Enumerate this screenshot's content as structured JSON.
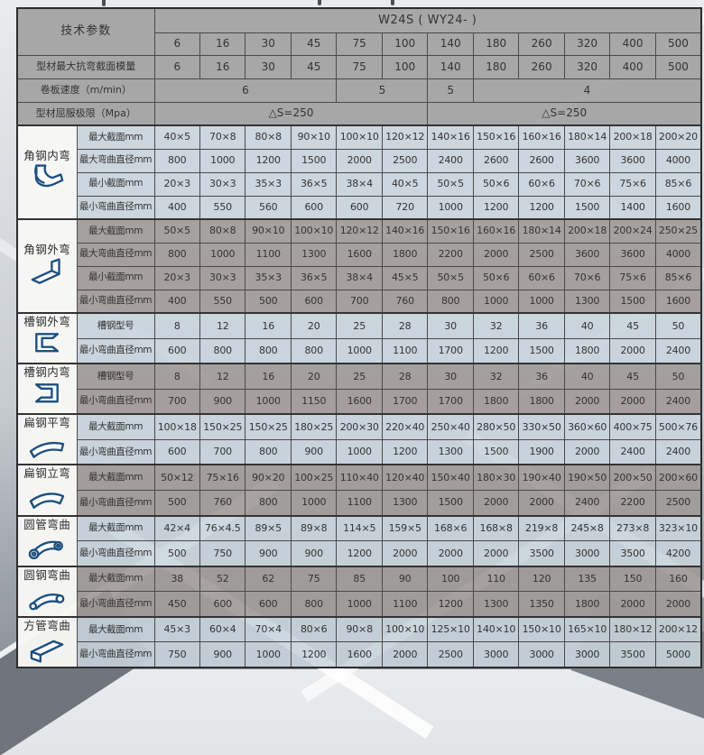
{
  "header": {
    "tech_label": "技术参数",
    "model": "W24S ( WY24- )",
    "columns": [
      "6",
      "16",
      "30",
      "45",
      "75",
      "100",
      "140",
      "180",
      "260",
      "320",
      "400",
      "500"
    ],
    "spec_rows": [
      {
        "label": "型材最大抗弯截面模量",
        "cells": [
          "6",
          "16",
          "30",
          "45",
          "75",
          "100",
          "140",
          "180",
          "260",
          "320",
          "400",
          "500"
        ]
      },
      {
        "label": "卷板速度（m/min）",
        "cells": [
          {
            "text": "6",
            "span": 4
          },
          {
            "text": "5",
            "span": 2
          },
          {
            "text": "5",
            "span": 1
          },
          {
            "text": "4",
            "span": 5
          }
        ]
      },
      {
        "label": "型材屈服极限（Mpa）",
        "cells": [
          {
            "text": "△S=250",
            "span": 6
          },
          {
            "text": "△S=250",
            "span": 6
          }
        ]
      }
    ]
  },
  "sections": [
    {
      "key": "angle-steel-inner-bend",
      "name": "角钢内弯",
      "tone": "light",
      "rows": [
        {
          "label": "最大截面mm",
          "values": [
            "40×5",
            "70×8",
            "80×8",
            "90×10",
            "100×10",
            "120×12",
            "140×16",
            "150×16",
            "160×16",
            "180×14",
            "200×18",
            "200×20"
          ]
        },
        {
          "label": "最大弯曲直径mm",
          "values": [
            "800",
            "1000",
            "1200",
            "1500",
            "2000",
            "2500",
            "2400",
            "2600",
            "2600",
            "3600",
            "3600",
            "4000"
          ]
        },
        {
          "label": "最小截面mm",
          "values": [
            "20×3",
            "30×3",
            "35×3",
            "36×5",
            "38×4",
            "40×5",
            "50×5",
            "50×6",
            "60×6",
            "70×6",
            "75×6",
            "85×6"
          ]
        },
        {
          "label": "最小弯曲直径mm",
          "values": [
            "400",
            "550",
            "560",
            "600",
            "600",
            "720",
            "1000",
            "1200",
            "1200",
            "1500",
            "1400",
            "1600"
          ]
        }
      ]
    },
    {
      "key": "angle-steel-outer-bend",
      "name": "角钢外弯",
      "tone": "dark",
      "rows": [
        {
          "label": "最大截面mm",
          "values": [
            "50×5",
            "80×8",
            "90×10",
            "100×10",
            "120×12",
            "140×16",
            "150×16",
            "160×16",
            "180×14",
            "200×18",
            "200×24",
            "250×25"
          ]
        },
        {
          "label": "最大弯曲直径mm",
          "values": [
            "800",
            "1000",
            "1100",
            "1300",
            "1600",
            "1800",
            "2200",
            "2000",
            "2500",
            "3600",
            "3600",
            "4000"
          ]
        },
        {
          "label": "最小截面mm",
          "values": [
            "20×3",
            "30×3",
            "35×3",
            "36×5",
            "38×4",
            "45×5",
            "50×5",
            "50×6",
            "60×6",
            "70×6",
            "75×6",
            "85×6"
          ]
        },
        {
          "label": "最小弯曲直径mm",
          "values": [
            "400",
            "550",
            "500",
            "600",
            "700",
            "760",
            "800",
            "1000",
            "1000",
            "1300",
            "1500",
            "1600"
          ]
        }
      ]
    },
    {
      "key": "channel-steel-outer-bend",
      "name": "槽钢外弯",
      "tone": "light",
      "rows": [
        {
          "label": "槽钢型号",
          "values": [
            "8",
            "12",
            "16",
            "20",
            "25",
            "28",
            "30",
            "32",
            "36",
            "40",
            "45",
            "50"
          ]
        },
        {
          "label": "最小弯曲直径mm",
          "values": [
            "600",
            "800",
            "800",
            "800",
            "1000",
            "1100",
            "1700",
            "1200",
            "1500",
            "1800",
            "2000",
            "2400"
          ]
        }
      ]
    },
    {
      "key": "channel-steel-inner-bend",
      "name": "槽钢内弯",
      "tone": "dark",
      "rows": [
        {
          "label": "槽钢型号",
          "values": [
            "8",
            "12",
            "16",
            "20",
            "25",
            "28",
            "30",
            "32",
            "36",
            "40",
            "45",
            "50"
          ]
        },
        {
          "label": "最小弯曲直径mm",
          "values": [
            "700",
            "900",
            "1000",
            "1150",
            "1600",
            "1700",
            "1700",
            "1800",
            "1800",
            "2000",
            "2000",
            "2400"
          ]
        }
      ]
    },
    {
      "key": "flat-steel-flat-bend",
      "name": "扁钢平弯",
      "tone": "light",
      "rows": [
        {
          "label": "最大截面mm",
          "values": [
            "100×18",
            "150×25",
            "150×25",
            "180×25",
            "200×30",
            "220×40",
            "250×40",
            "280×50",
            "330×50",
            "360×60",
            "400×75",
            "500×76"
          ]
        },
        {
          "label": "最小弯曲直径mm",
          "values": [
            "600",
            "700",
            "800",
            "900",
            "1000",
            "1200",
            "1300",
            "1500",
            "1900",
            "2000",
            "2400",
            "2400"
          ]
        }
      ]
    },
    {
      "key": "flat-steel-vertical-bend",
      "name": "扁钢立弯",
      "tone": "dark",
      "rows": [
        {
          "label": "最大截面mm",
          "values": [
            "50×12",
            "75×16",
            "90×20",
            "100×25",
            "110×40",
            "120×40",
            "150×40",
            "180×30",
            "190×40",
            "190×50",
            "200×50",
            "200×60"
          ]
        },
        {
          "label": "最小弯曲直径mm",
          "values": [
            "500",
            "760",
            "800",
            "1000",
            "1100",
            "1300",
            "1500",
            "2000",
            "2000",
            "2400",
            "2200",
            "2500"
          ]
        }
      ]
    },
    {
      "key": "round-tube-bend",
      "name": "圆管弯曲",
      "tone": "light",
      "rows": [
        {
          "label": "最大截面mm",
          "values": [
            "42×4",
            "76×4.5",
            "89×5",
            "89×8",
            "114×5",
            "159×5",
            "168×6",
            "168×8",
            "219×8",
            "245×8",
            "273×8",
            "323×10"
          ]
        },
        {
          "label": "最小弯曲直径mm",
          "values": [
            "500",
            "750",
            "900",
            "900",
            "1200",
            "2000",
            "2000",
            "2000",
            "3500",
            "3000",
            "3500",
            "4200"
          ]
        }
      ]
    },
    {
      "key": "round-bar-bend",
      "name": "圆钢弯曲",
      "tone": "dark",
      "rows": [
        {
          "label": "最大截面mm",
          "values": [
            "38",
            "52",
            "62",
            "75",
            "85",
            "90",
            "100",
            "110",
            "120",
            "135",
            "150",
            "160"
          ]
        },
        {
          "label": "最小弯曲直径mm",
          "values": [
            "450",
            "600",
            "600",
            "800",
            "1000",
            "1100",
            "1200",
            "1300",
            "1350",
            "1800",
            "2000",
            "2000"
          ]
        }
      ]
    },
    {
      "key": "square-tube-bend",
      "name": "方管弯曲",
      "tone": "light",
      "rows": [
        {
          "label": "最大截面mm",
          "values": [
            "45×3",
            "60×4",
            "70×4",
            "80×6",
            "90×8",
            "100×10",
            "125×10",
            "140×10",
            "150×10",
            "165×10",
            "180×12",
            "200×12"
          ]
        },
        {
          "label": "最小弯曲直径mm",
          "values": [
            "750",
            "900",
            "1000",
            "1200",
            "1600",
            "2000",
            "2500",
            "3000",
            "3000",
            "3000",
            "3500",
            "5000"
          ]
        }
      ]
    },
    {
      "key": "colors",
      "name": "",
      "tone": "",
      "rows": []
    }
  ],
  "colors": {
    "header_bg": "#a3a3a3",
    "light_row_bg": "#c9d4dc",
    "dark_row_bg": "#a09a97",
    "name_col_bg": "#f6f6f4",
    "border": "#2d2d2d",
    "icon_stroke": "#1d4f7d"
  }
}
